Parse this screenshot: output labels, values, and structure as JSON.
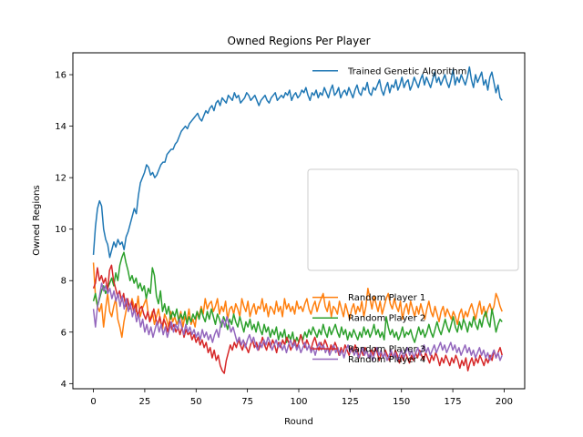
{
  "chart_data": {
    "type": "line",
    "title": "Owned Regions Per Player",
    "xlabel": "Round",
    "ylabel": "Owned Regions",
    "xlim": [
      -10,
      210
    ],
    "ylim": [
      3.8,
      16.85
    ],
    "xticks": [
      0,
      25,
      50,
      75,
      100,
      125,
      150,
      175,
      200
    ],
    "yticks": [
      4,
      6,
      8,
      10,
      12,
      14,
      16
    ],
    "grid": false,
    "legend_position": "center-right",
    "x_start": 0,
    "x_end": 199,
    "series": [
      {
        "name": "Trained Genetic Algorithm",
        "color": "#1f77b4",
        "values": [
          9.0,
          10.1,
          10.8,
          11.1,
          10.9,
          10.0,
          9.6,
          9.4,
          8.9,
          9.2,
          9.5,
          9.3,
          9.6,
          9.4,
          9.5,
          9.2,
          9.7,
          9.9,
          10.2,
          10.5,
          10.8,
          10.6,
          11.3,
          11.8,
          12.0,
          12.2,
          12.5,
          12.4,
          12.1,
          12.2,
          12.0,
          12.1,
          12.3,
          12.5,
          12.6,
          12.6,
          12.9,
          13.0,
          13.1,
          13.1,
          13.3,
          13.4,
          13.6,
          13.8,
          13.9,
          14.0,
          13.9,
          14.1,
          14.2,
          14.3,
          14.4,
          14.5,
          14.3,
          14.2,
          14.4,
          14.6,
          14.5,
          14.7,
          14.8,
          14.6,
          14.9,
          15.0,
          14.8,
          15.1,
          15.0,
          14.9,
          15.2,
          15.1,
          15.0,
          15.3,
          15.1,
          15.2,
          14.9,
          15.0,
          15.1,
          15.3,
          15.2,
          15.0,
          15.1,
          15.2,
          15.0,
          14.8,
          15.0,
          15.1,
          15.2,
          15.0,
          14.9,
          15.1,
          15.2,
          15.3,
          15.0,
          15.1,
          15.2,
          15.1,
          15.3,
          15.2,
          15.4,
          15.0,
          15.2,
          15.3,
          15.1,
          15.2,
          15.4,
          15.3,
          15.5,
          15.2,
          15.0,
          15.3,
          15.2,
          15.4,
          15.1,
          15.3,
          15.2,
          15.5,
          15.3,
          15.1,
          15.4,
          15.6,
          15.2,
          15.3,
          15.5,
          15.1,
          15.3,
          15.4,
          15.2,
          15.5,
          15.3,
          15.1,
          15.4,
          15.6,
          15.3,
          15.2,
          15.5,
          15.4,
          15.7,
          15.3,
          15.2,
          15.5,
          15.4,
          15.6,
          15.8,
          15.4,
          15.2,
          15.5,
          15.7,
          15.3,
          15.6,
          15.5,
          15.8,
          15.4,
          15.6,
          15.9,
          15.5,
          15.7,
          15.8,
          15.4,
          15.6,
          15.9,
          15.7,
          15.5,
          15.8,
          16.0,
          15.6,
          15.9,
          15.7,
          15.5,
          15.8,
          16.1,
          15.7,
          15.9,
          15.6,
          15.8,
          16.0,
          15.7,
          15.5,
          15.8,
          16.2,
          15.6,
          15.9,
          15.7,
          16.0,
          15.8,
          15.6,
          15.9,
          16.3,
          15.8,
          15.5,
          16.0,
          15.7,
          15.9,
          16.1,
          15.6,
          15.8,
          15.4,
          15.9,
          16.1,
          15.7,
          15.3,
          15.6,
          15.1,
          15.0
        ],
        "label_y": 16.15
      },
      {
        "name": "Random Player 1",
        "color": "#ff7f0e",
        "values": [
          8.7,
          7.4,
          7.0,
          6.8,
          7.1,
          6.2,
          6.9,
          7.5,
          6.8,
          6.6,
          7.0,
          7.3,
          6.5,
          6.2,
          5.8,
          6.4,
          6.8,
          7.2,
          6.9,
          7.3,
          7.0,
          6.8,
          7.4,
          6.6,
          6.9,
          7.1,
          7.3,
          6.7,
          6.5,
          6.8,
          6.3,
          6.6,
          6.9,
          6.4,
          6.1,
          6.7,
          6.5,
          6.2,
          6.8,
          6.4,
          6.6,
          6.3,
          6.5,
          6.8,
          6.2,
          6.6,
          6.4,
          6.9,
          6.3,
          6.5,
          6.2,
          6.8,
          6.6,
          7.0,
          6.7,
          7.3,
          6.9,
          7.1,
          7.2,
          6.8,
          7.0,
          7.3,
          6.7,
          7.0,
          6.8,
          7.2,
          6.5,
          6.9,
          7.0,
          6.7,
          7.1,
          6.9,
          6.6,
          7.3,
          7.0,
          6.8,
          7.2,
          6.6,
          6.9,
          7.1,
          6.7,
          7.0,
          6.9,
          7.3,
          6.8,
          7.1,
          6.6,
          7.0,
          6.9,
          6.7,
          7.2,
          6.8,
          7.0,
          6.6,
          7.3,
          6.9,
          7.1,
          6.8,
          7.0,
          6.7,
          7.2,
          6.9,
          7.0,
          6.8,
          7.1,
          7.3,
          6.9,
          6.7,
          7.0,
          7.2,
          6.8,
          7.1,
          7.3,
          7.5,
          7.0,
          6.8,
          7.2,
          6.6,
          7.0,
          6.9,
          6.7,
          7.2,
          6.9,
          6.6,
          7.1,
          6.8,
          6.5,
          6.9,
          7.1,
          6.7,
          7.0,
          6.8,
          7.2,
          6.6,
          7.0,
          7.7,
          7.3,
          6.9,
          7.4,
          7.1,
          6.8,
          7.2,
          6.7,
          7.0,
          7.3,
          7.5,
          7.1,
          6.9,
          7.3,
          7.0,
          6.8,
          7.2,
          6.5,
          6.9,
          7.1,
          6.7,
          7.2,
          6.9,
          6.6,
          7.0,
          6.7,
          7.1,
          6.8,
          6.5,
          6.9,
          7.2,
          6.8,
          6.6,
          7.0,
          6.7,
          6.4,
          6.8,
          7.0,
          6.6,
          6.9,
          6.7,
          6.5,
          6.8,
          6.6,
          6.3,
          6.7,
          6.9,
          6.5,
          6.8,
          6.6,
          6.9,
          7.1,
          6.8,
          6.5,
          6.9,
          7.2,
          6.7,
          7.0,
          6.6,
          6.9,
          7.1,
          6.8,
          7.0,
          7.5,
          7.3,
          7.0,
          6.8
        ],
        "label_y": 7.35
      },
      {
        "name": "Random Player 2",
        "color": "#2ca02c",
        "values": [
          7.2,
          7.5,
          7.0,
          7.3,
          7.6,
          7.8,
          7.5,
          7.7,
          7.9,
          8.1,
          7.8,
          8.3,
          8.0,
          8.6,
          8.9,
          9.1,
          8.7,
          8.4,
          8.0,
          8.2,
          7.9,
          8.1,
          7.7,
          7.9,
          7.6,
          7.8,
          7.3,
          7.7,
          7.5,
          8.5,
          8.2,
          7.4,
          7.1,
          7.6,
          6.8,
          7.1,
          6.7,
          7.0,
          6.5,
          6.8,
          6.6,
          6.9,
          6.4,
          6.7,
          6.5,
          6.8,
          6.3,
          6.6,
          6.4,
          6.7,
          6.5,
          6.8,
          6.5,
          6.9,
          6.6,
          6.4,
          6.8,
          6.5,
          6.9,
          6.6,
          6.3,
          6.7,
          6.5,
          6.2,
          6.6,
          6.4,
          6.1,
          6.5,
          6.3,
          6.7,
          6.4,
          6.2,
          6.6,
          6.3,
          6.0,
          6.4,
          6.2,
          6.5,
          6.1,
          6.3,
          6.0,
          6.4,
          6.1,
          5.9,
          6.3,
          6.0,
          6.2,
          5.8,
          6.1,
          5.9,
          6.2,
          5.7,
          6.0,
          5.8,
          6.1,
          5.6,
          5.9,
          5.7,
          6.0,
          5.5,
          5.8,
          5.6,
          5.9,
          5.7,
          6.0,
          5.8,
          6.1,
          5.9,
          6.2,
          6.0,
          5.8,
          6.1,
          5.9,
          6.3,
          6.0,
          5.8,
          6.2,
          5.9,
          6.1,
          6.3,
          6.0,
          5.8,
          6.2,
          5.9,
          6.1,
          5.7,
          6.0,
          5.8,
          6.1,
          5.9,
          5.7,
          6.0,
          5.8,
          6.2,
          5.9,
          6.1,
          5.8,
          6.0,
          6.3,
          5.9,
          6.1,
          5.8,
          6.0,
          5.7,
          6.6,
          6.2,
          5.9,
          6.1,
          5.8,
          6.0,
          5.7,
          5.9,
          6.2,
          5.8,
          6.0,
          5.9,
          6.1,
          5.8,
          5.6,
          5.9,
          6.2,
          5.9,
          6.1,
          5.8,
          6.0,
          6.3,
          6.0,
          5.8,
          6.1,
          6.4,
          6.1,
          5.9,
          6.2,
          6.5,
          6.2,
          6.0,
          6.3,
          6.6,
          6.2,
          6.0,
          6.4,
          6.1,
          6.5,
          6.3,
          6.0,
          6.4,
          6.2,
          6.6,
          6.3,
          6.1,
          6.5,
          6.2,
          6.6,
          6.8,
          6.4,
          6.2,
          6.9,
          6.5,
          6.0,
          6.3,
          6.5,
          6.4
        ],
        "label_y": 6.55
      },
      {
        "name": "Random Player 3",
        "color": "#d62728",
        "values": [
          7.7,
          7.9,
          8.5,
          8.0,
          8.2,
          7.9,
          8.1,
          7.6,
          8.4,
          8.6,
          8.0,
          7.7,
          7.4,
          7.6,
          7.2,
          7.5,
          7.0,
          7.3,
          6.9,
          7.2,
          6.8,
          7.1,
          6.6,
          6.9,
          7.0,
          6.7,
          6.5,
          6.8,
          6.4,
          6.6,
          6.9,
          6.5,
          6.3,
          6.6,
          6.2,
          6.5,
          6.3,
          6.0,
          6.4,
          6.1,
          6.3,
          6.0,
          6.2,
          5.9,
          6.2,
          5.8,
          6.1,
          5.9,
          6.0,
          5.7,
          5.9,
          5.6,
          5.8,
          5.5,
          5.7,
          5.4,
          5.6,
          5.2,
          5.4,
          5.0,
          5.3,
          4.9,
          5.1,
          4.7,
          4.5,
          4.4,
          4.9,
          5.2,
          5.5,
          5.3,
          5.6,
          5.4,
          5.7,
          5.5,
          5.3,
          5.6,
          5.4,
          5.2,
          5.5,
          5.7,
          5.4,
          5.6,
          5.3,
          5.5,
          5.8,
          5.5,
          5.3,
          5.6,
          5.4,
          5.7,
          5.5,
          5.2,
          5.6,
          5.4,
          5.7,
          5.5,
          5.8,
          5.6,
          5.3,
          5.5,
          5.7,
          5.4,
          5.6,
          5.9,
          5.6,
          5.4,
          5.7,
          5.5,
          5.3,
          5.6,
          5.8,
          5.5,
          5.3,
          5.6,
          5.4,
          5.7,
          5.5,
          5.2,
          5.5,
          5.3,
          5.6,
          5.4,
          5.1,
          5.4,
          5.2,
          5.5,
          5.3,
          5.1,
          5.4,
          5.2,
          5.5,
          5.3,
          5.0,
          5.3,
          5.1,
          5.4,
          5.2,
          5.0,
          5.3,
          5.1,
          5.4,
          5.2,
          4.9,
          5.2,
          5.0,
          5.3,
          5.1,
          4.9,
          5.2,
          5.0,
          5.3,
          5.1,
          4.8,
          5.1,
          4.9,
          5.2,
          5.0,
          4.8,
          5.1,
          4.9,
          5.2,
          5.0,
          5.3,
          5.1,
          4.9,
          5.2,
          5.0,
          4.8,
          5.1,
          4.9,
          5.2,
          5.0,
          4.7,
          5.0,
          4.8,
          5.1,
          4.9,
          4.7,
          5.0,
          4.8,
          5.1,
          4.9,
          4.6,
          4.9,
          4.7,
          5.0,
          4.5,
          4.8,
          5.0,
          4.7,
          5.0,
          4.8,
          5.1,
          4.9,
          4.7,
          5.0,
          4.8,
          5.1,
          4.9,
          5.3,
          5.0,
          5.2,
          5.4,
          5.1
        ],
        "label_y": 5.35
      },
      {
        "name": "Random Player 4",
        "color": "#9467bd",
        "values": [
          6.9,
          6.2,
          7.0,
          7.4,
          7.9,
          7.6,
          7.8,
          7.5,
          7.7,
          7.3,
          7.6,
          7.2,
          7.5,
          7.0,
          7.4,
          6.9,
          7.3,
          6.8,
          7.1,
          6.6,
          6.9,
          6.4,
          6.7,
          6.2,
          6.5,
          6.0,
          6.3,
          5.9,
          6.2,
          5.8,
          6.1,
          6.4,
          6.0,
          6.3,
          5.9,
          6.2,
          5.8,
          6.1,
          6.4,
          6.0,
          6.3,
          6.1,
          6.5,
          6.2,
          5.9,
          6.3,
          6.0,
          6.2,
          5.9,
          6.1,
          5.8,
          6.0,
          5.7,
          6.1,
          5.8,
          6.0,
          5.7,
          5.9,
          5.6,
          5.9,
          6.1,
          5.8,
          6.3,
          6.5,
          6.2,
          6.6,
          6.3,
          6.0,
          6.2,
          5.9,
          5.6,
          5.8,
          5.5,
          5.7,
          5.4,
          5.7,
          5.9,
          5.6,
          5.8,
          5.5,
          5.3,
          5.6,
          5.4,
          5.7,
          5.5,
          5.8,
          5.6,
          5.3,
          5.5,
          5.7,
          5.4,
          5.6,
          5.3,
          5.5,
          5.2,
          5.5,
          5.7,
          5.4,
          5.6,
          5.3,
          5.5,
          5.2,
          5.4,
          5.6,
          5.3,
          5.5,
          5.2,
          5.4,
          5.1,
          5.4,
          5.6,
          5.3,
          5.5,
          5.2,
          5.4,
          5.1,
          5.3,
          5.5,
          5.2,
          5.4,
          5.1,
          5.3,
          5.0,
          5.3,
          5.5,
          5.2,
          5.4,
          5.1,
          5.3,
          5.0,
          5.2,
          5.4,
          5.1,
          5.3,
          5.0,
          5.2,
          4.9,
          5.2,
          5.4,
          5.1,
          5.3,
          5.0,
          5.2,
          4.9,
          5.1,
          5.3,
          5.0,
          5.2,
          4.9,
          5.1,
          5.3,
          5.0,
          5.2,
          5.4,
          5.1,
          5.3,
          5.0,
          5.2,
          5.4,
          5.1,
          5.3,
          5.5,
          5.2,
          5.4,
          5.1,
          5.3,
          5.5,
          5.2,
          5.4,
          5.6,
          5.3,
          5.5,
          5.2,
          5.4,
          5.6,
          5.3,
          5.5,
          5.2,
          5.4,
          5.1,
          5.3,
          5.5,
          5.2,
          5.4,
          5.1,
          5.3,
          5.0,
          5.2,
          5.4,
          5.1,
          5.3,
          5.0,
          5.2,
          4.9,
          5.1,
          5.3,
          5.0,
          5.2,
          4.9,
          5.1
        ],
        "label_y": 4.95
      }
    ]
  }
}
